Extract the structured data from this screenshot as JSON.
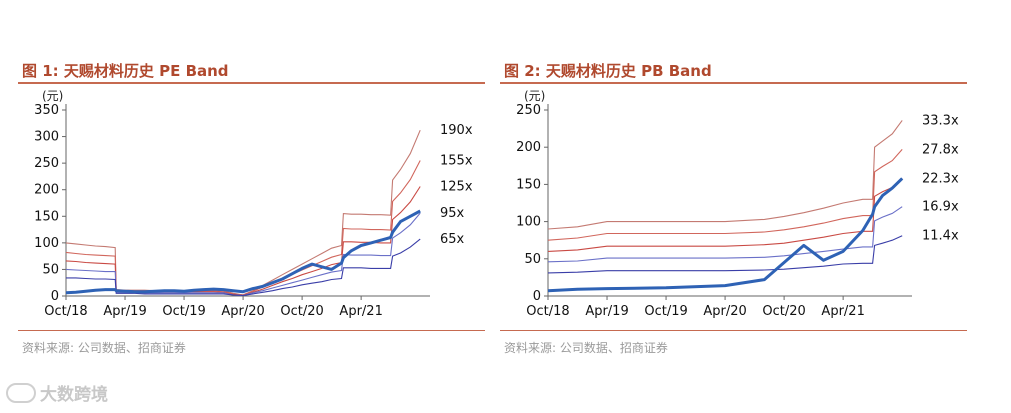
{
  "page": {
    "watermark_text": "大数跨境",
    "watermark_icon": "brand-logo-icon"
  },
  "charts": [
    {
      "figure_title": "图 1:  天赐材料历史 PE Band",
      "source": "资料来源: 公司数据、招商证券",
      "accent_color": "#b0492e",
      "price_color": "#2e62b5",
      "band_colors": [
        "#c47a72",
        "#d1665c",
        "#c94a44",
        "#6a70c8",
        "#3a3ea8"
      ]
    },
    {
      "figure_title": "图 2:  天赐材料历史 PB Band",
      "source": "资料来源: 公司数据、招商证券",
      "accent_color": "#b0492e",
      "price_color": "#2e62b5",
      "band_colors": [
        "#c47a72",
        "#d1665c",
        "#c94a44",
        "#6a70c8",
        "#3a3ea8"
      ]
    }
  ],
  "chart_data": [
    {
      "type": "line",
      "unit_label": "(元)",
      "x_ticks": [
        "Oct/18",
        "Apr/19",
        "Oct/19",
        "Apr/20",
        "Oct/20",
        "Apr/21"
      ],
      "x_tick_positions": [
        0,
        6,
        12,
        18,
        24,
        30
      ],
      "x_range": [
        0,
        37
      ],
      "ylim": [
        0,
        350
      ],
      "y_ticks": [
        0,
        50,
        100,
        150,
        200,
        250,
        300,
        350
      ],
      "x": [
        0,
        1,
        2,
        3,
        4,
        5,
        5.1,
        6,
        7,
        8,
        9,
        10,
        11,
        12,
        13,
        14,
        15,
        16,
        17,
        18,
        19,
        20,
        21,
        22,
        23,
        24,
        25,
        26,
        27,
        28,
        28.2,
        29,
        30,
        31,
        32,
        33,
        33.2,
        34,
        35,
        36
      ],
      "series": [
        {
          "name": "190x",
          "values": [
            100,
            98,
            96,
            94,
            93,
            91,
            12,
            11,
            11,
            11,
            10,
            10,
            10,
            10,
            11,
            11,
            11,
            10,
            5,
            2,
            10,
            20,
            30,
            40,
            50,
            60,
            70,
            80,
            90,
            95,
            155,
            154,
            154,
            153,
            153,
            152,
            218,
            238,
            268,
            312
          ]
        },
        {
          "name": "155x",
          "values": [
            82,
            80,
            78,
            77,
            76,
            75,
            11,
            10,
            10,
            10,
            9,
            9,
            9,
            9,
            10,
            10,
            10,
            9,
            4,
            2,
            9,
            17,
            25,
            33,
            41,
            49,
            57,
            65,
            73,
            78,
            127,
            126,
            126,
            125,
            125,
            124,
            178,
            194,
            219,
            255
          ]
        },
        {
          "name": "125x",
          "values": [
            66,
            65,
            63,
            62,
            61,
            60,
            9,
            9,
            9,
            8,
            8,
            8,
            8,
            8,
            8,
            8,
            8,
            7,
            3,
            1,
            7,
            13,
            20,
            27,
            33,
            40,
            46,
            52,
            59,
            63,
            102,
            102,
            101,
            101,
            100,
            100,
            144,
            157,
            177,
            206
          ]
        },
        {
          "name": "95x",
          "values": [
            50,
            49,
            48,
            47,
            46,
            46,
            7,
            7,
            7,
            6,
            6,
            6,
            6,
            6,
            6,
            6,
            6,
            6,
            2,
            1,
            6,
            10,
            15,
            20,
            25,
            30,
            35,
            40,
            45,
            48,
            78,
            77,
            77,
            77,
            76,
            76,
            109,
            119,
            134,
            156
          ]
        },
        {
          "name": "65x",
          "values": [
            34,
            34,
            33,
            32,
            32,
            31,
            5,
            5,
            5,
            4,
            4,
            4,
            4,
            4,
            4,
            4,
            4,
            4,
            2,
            1,
            4,
            7,
            10,
            14,
            17,
            21,
            24,
            27,
            31,
            33,
            53,
            53,
            53,
            52,
            52,
            52,
            75,
            81,
            92,
            107
          ]
        },
        {
          "name": "price",
          "values": [
            6,
            7,
            9,
            11,
            12,
            12,
            10,
            9,
            8,
            8,
            9,
            10,
            10,
            9,
            11,
            12,
            13,
            12,
            10,
            8,
            14,
            18,
            25,
            32,
            42,
            52,
            60,
            55,
            50,
            62,
            72,
            85,
            95,
            100,
            105,
            110,
            120,
            140,
            150,
            160
          ]
        }
      ]
    },
    {
      "type": "line",
      "unit_label": "(元)",
      "x_ticks": [
        "Oct/18",
        "Apr/19",
        "Oct/19",
        "Apr/20",
        "Oct/20",
        "Apr/21"
      ],
      "x_tick_positions": [
        0,
        6,
        12,
        18,
        24,
        30
      ],
      "x_range": [
        0,
        37
      ],
      "ylim": [
        0,
        250
      ],
      "y_ticks": [
        0,
        50,
        100,
        150,
        200,
        250
      ],
      "x": [
        0,
        3,
        6,
        12,
        18,
        22,
        24,
        26,
        28,
        30,
        32,
        33,
        33.2,
        34,
        35,
        36
      ],
      "series": [
        {
          "name": "33.3x",
          "values": [
            90,
            93,
            100,
            100,
            100,
            103,
            107,
            112,
            118,
            125,
            130,
            130,
            200,
            208,
            218,
            236
          ]
        },
        {
          "name": "27.8x",
          "values": [
            75,
            78,
            84,
            84,
            84,
            86,
            89,
            93,
            98,
            104,
            108,
            108,
            167,
            174,
            182,
            197
          ]
        },
        {
          "name": "22.3x",
          "values": [
            60,
            62,
            67,
            67,
            67,
            69,
            71,
            75,
            79,
            84,
            87,
            87,
            134,
            140,
            146,
            158
          ]
        },
        {
          "name": "16.9x",
          "values": [
            46,
            47,
            51,
            51,
            51,
            52,
            54,
            57,
            60,
            63,
            66,
            66,
            101,
            106,
            111,
            120
          ]
        },
        {
          "name": "11.4x",
          "values": [
            31,
            32,
            34,
            34,
            34,
            35,
            36,
            38,
            40,
            43,
            44,
            44,
            68,
            71,
            75,
            81
          ]
        },
        {
          "name": "price",
          "values": [
            7,
            9,
            10,
            11,
            14,
            22,
            45,
            68,
            48,
            60,
            88,
            110,
            120,
            135,
            145,
            158
          ]
        }
      ]
    }
  ]
}
